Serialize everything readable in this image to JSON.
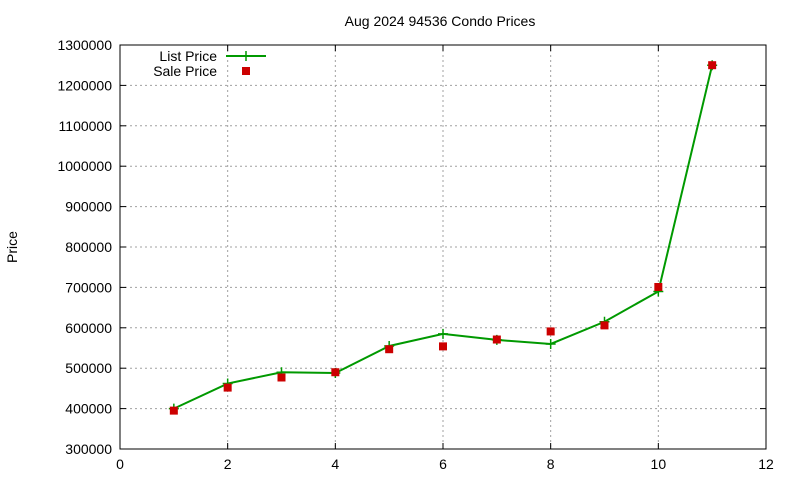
{
  "chart_data": {
    "type": "line",
    "title": "Aug 2024 94536 Condo Prices",
    "xlabel": "",
    "ylabel": "Price",
    "xlim": [
      0,
      12
    ],
    "ylim": [
      300000,
      1300000
    ],
    "x_ticks": [
      0,
      2,
      4,
      6,
      8,
      10,
      12
    ],
    "y_ticks": [
      300000,
      400000,
      500000,
      600000,
      700000,
      800000,
      900000,
      1000000,
      1100000,
      1200000,
      1300000
    ],
    "grid": true,
    "legend_position": "top-left",
    "series": [
      {
        "name": "List Price",
        "style": "line-with-plus-markers",
        "color": "#009900",
        "x": [
          1,
          2,
          3,
          4,
          5,
          6,
          7,
          8,
          9,
          10,
          11
        ],
        "values": [
          400000,
          462000,
          490000,
          488000,
          555000,
          585000,
          570000,
          560000,
          615000,
          690000,
          1250000
        ]
      },
      {
        "name": "Sale Price",
        "style": "square-markers",
        "color": "#cc0000",
        "x": [
          1,
          2,
          3,
          4,
          5,
          6,
          7,
          8,
          9,
          10,
          11
        ],
        "values": [
          395000,
          452000,
          477000,
          490000,
          547000,
          554000,
          571000,
          591000,
          606000,
          701000,
          1250000
        ]
      }
    ]
  }
}
